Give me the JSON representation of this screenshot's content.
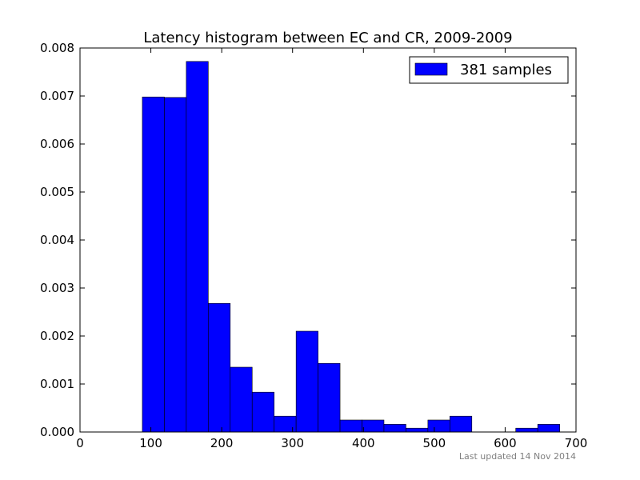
{
  "chart_data": {
    "type": "bar",
    "title": "Latency histogram between EC and CR, 2009-2009",
    "xlabel": "",
    "ylabel": "",
    "xlim": [
      0,
      700
    ],
    "ylim": [
      0,
      0.008
    ],
    "xticks": [
      0,
      100,
      200,
      300,
      400,
      500,
      600,
      700
    ],
    "xtick_labels": [
      "0",
      "100",
      "200",
      "300",
      "400",
      "500",
      "600",
      "700"
    ],
    "yticks": [
      0,
      0.001,
      0.002,
      0.003,
      0.004,
      0.005,
      0.006,
      0.007,
      0.008
    ],
    "ytick_labels": [
      "0.000",
      "0.001",
      "0.002",
      "0.003",
      "0.004",
      "0.005",
      "0.006",
      "0.007",
      "0.008"
    ],
    "grid": false,
    "legend_position": "top-right",
    "bar_color": "#0000ff",
    "bin_edges": [
      88,
      119,
      150,
      181,
      212,
      243,
      274,
      305,
      336,
      367,
      398,
      429,
      460,
      491,
      522,
      553,
      584,
      615,
      646,
      677
    ],
    "values": [
      0.00698,
      0.00697,
      0.00772,
      0.00268,
      0.00135,
      0.00083,
      0.00033,
      0.0021,
      0.00143,
      0.00025,
      0.00025,
      0.00016,
      8e-05,
      0.00025,
      0.00033,
      0,
      0,
      8e-05,
      0.00016
    ],
    "series": [
      {
        "name": "381 samples",
        "color": "#0000ff"
      }
    ]
  },
  "footer": {
    "note": "Last updated 14 Nov 2014"
  }
}
